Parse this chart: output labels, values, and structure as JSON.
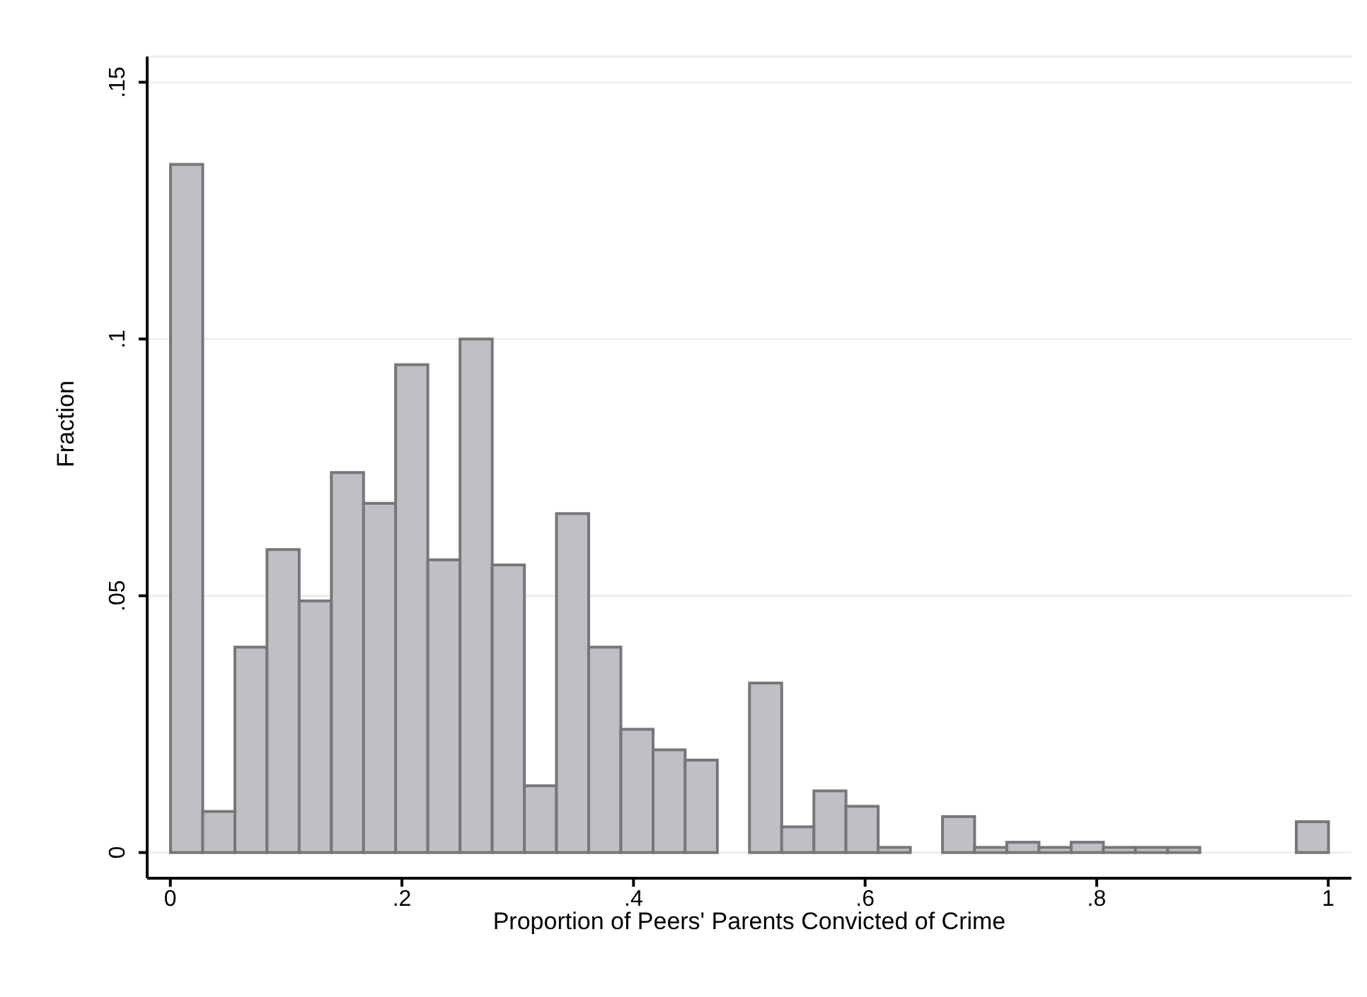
{
  "chart_data": {
    "type": "histogram",
    "xlabel": "Proportion of Peers' Parents Convicted of Crime",
    "ylabel": "Fraction",
    "bins": [
      0,
      0.0278,
      0.0556,
      0.0833,
      0.1111,
      0.1389,
      0.1667,
      0.1944,
      0.2222,
      0.25,
      0.2778,
      0.3056,
      0.3333,
      0.3611,
      0.3889,
      0.4167,
      0.4444,
      0.4722,
      0.5,
      0.5278,
      0.5556,
      0.5833,
      0.6111,
      0.6389,
      0.6667,
      0.6944,
      0.7222,
      0.75,
      0.7778,
      0.8056,
      0.8333,
      0.8611,
      0.8889,
      0.9167,
      0.9444,
      0.9722,
      1
    ],
    "values": [
      0.134,
      0.008,
      0.04,
      0.059,
      0.049,
      0.074,
      0.068,
      0.095,
      0.057,
      0.1,
      0.056,
      0.013,
      0.066,
      0.04,
      0.024,
      0.02,
      0.018,
      0,
      0.033,
      0.005,
      0.012,
      0.009,
      0.001,
      0,
      0.007,
      0.001,
      0.002,
      0.001,
      0.002,
      0.001,
      0.001,
      0.001,
      0,
      0,
      0,
      0.006
    ],
    "color": "#c0bfc3",
    "xlim": [
      -0.02,
      1.02
    ],
    "xticks": [
      0,
      {
        "value": 0.2,
        "label": ".2"
      },
      {
        "value": 0.4,
        "label": ".4"
      },
      {
        "value": 0.6,
        "label": ".6"
      },
      {
        "value": 0.8,
        "label": ".8"
      },
      1
    ],
    "ylim": [
      -0.005,
      0.155
    ],
    "yticks": [
      0,
      {
        "value": 0.05,
        "label": ".05"
      },
      {
        "value": 0.1,
        "label": ".1"
      },
      {
        "value": 0.15,
        "label": ".15"
      }
    ],
    "grid": "y"
  }
}
